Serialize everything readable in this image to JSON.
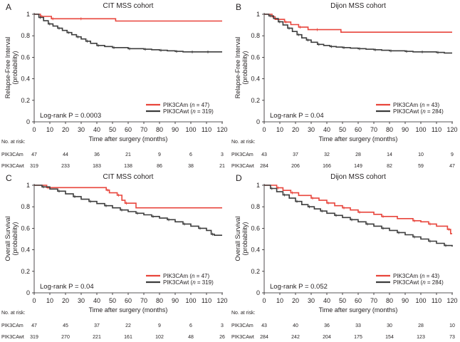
{
  "x_axis_label": "Time after surgery (months)",
  "x_ticks": [
    "0",
    "10",
    "20",
    "30",
    "40",
    "50",
    "60",
    "70",
    "80",
    "90",
    "100",
    "110",
    "120"
  ],
  "y_ticks": [
    "0",
    "0.2",
    "0.4",
    "0.6",
    "0.8",
    "1"
  ],
  "risk_header": "No. at risk:",
  "colors": {
    "mutant": "#e8453c",
    "wildtype": "#3d3d3d",
    "axis": "#231f20"
  },
  "chart_data": [
    {
      "panel": "A",
      "type": "line",
      "title": "CIT MSS cohort",
      "ylabel": [
        "Relapse-Free Interval",
        "(probability)"
      ],
      "xlim": [
        0,
        120
      ],
      "ylim": [
        0,
        1
      ],
      "logrank": "Log-rank P = 0.0003",
      "series": [
        {
          "name": "PIK3CAm",
          "n": "47",
          "color": "mutant",
          "x": [
            0,
            4,
            8,
            11,
            21,
            29,
            52,
            120
          ],
          "y": [
            1,
            0.98,
            0.98,
            0.958,
            0.958,
            0.958,
            0.937,
            0.937
          ]
        },
        {
          "name": "PIK3CAwt",
          "n": "319",
          "color": "wildtype",
          "x": [
            0,
            3,
            6,
            9,
            12,
            15,
            18,
            21,
            24,
            27,
            30,
            33,
            36,
            40,
            45,
            50,
            55,
            60,
            65,
            70,
            75,
            80,
            85,
            90,
            95,
            100,
            105,
            110,
            115,
            120
          ],
          "y": [
            1,
            0.97,
            0.94,
            0.91,
            0.89,
            0.87,
            0.85,
            0.83,
            0.81,
            0.79,
            0.77,
            0.75,
            0.73,
            0.71,
            0.7,
            0.69,
            0.69,
            0.68,
            0.68,
            0.675,
            0.67,
            0.665,
            0.66,
            0.655,
            0.65,
            0.65,
            0.65,
            0.65,
            0.65,
            0.65
          ]
        }
      ],
      "risk": [
        {
          "label": "PIK3CAm",
          "values": [
            "47",
            "44",
            "36",
            "21",
            "9",
            "6",
            "3"
          ]
        },
        {
          "label": "PIK3CAwt",
          "values": [
            "319",
            "233",
            "183",
            "138",
            "86",
            "38",
            "21"
          ]
        }
      ]
    },
    {
      "panel": "B",
      "type": "line",
      "title": "Dijon MSS cohort",
      "ylabel": [
        "Relapse-Free Interval",
        "(probability)"
      ],
      "xlim": [
        0,
        120
      ],
      "ylim": [
        0,
        1
      ],
      "logrank": "Log-rank P = 0.04",
      "series": [
        {
          "name": "PIK3CAm",
          "n": "43",
          "color": "mutant",
          "x": [
            0,
            5,
            7,
            13,
            17,
            22,
            28,
            33,
            49,
            120
          ],
          "y": [
            1,
            0.976,
            0.952,
            0.928,
            0.904,
            0.88,
            0.857,
            0.857,
            0.833,
            0.833
          ]
        },
        {
          "name": "PIK3CAwt",
          "n": "284",
          "color": "wildtype",
          "x": [
            0,
            3,
            6,
            9,
            12,
            15,
            18,
            21,
            24,
            27,
            30,
            34,
            38,
            42,
            46,
            50,
            55,
            60,
            65,
            70,
            75,
            80,
            85,
            90,
            95,
            100,
            105,
            110,
            115,
            120
          ],
          "y": [
            1,
            0.985,
            0.96,
            0.93,
            0.9,
            0.87,
            0.84,
            0.81,
            0.78,
            0.76,
            0.74,
            0.72,
            0.71,
            0.7,
            0.695,
            0.69,
            0.685,
            0.68,
            0.675,
            0.67,
            0.665,
            0.66,
            0.66,
            0.655,
            0.65,
            0.65,
            0.65,
            0.645,
            0.64,
            0.64
          ]
        }
      ],
      "risk": [
        {
          "label": "PIK3CAm",
          "values": [
            "43",
            "37",
            "32",
            "28",
            "14",
            "10",
            "9"
          ]
        },
        {
          "label": "PIK3CAwt",
          "values": [
            "284",
            "206",
            "166",
            "149",
            "82",
            "59",
            "47"
          ]
        }
      ]
    },
    {
      "panel": "C",
      "type": "line",
      "title": "CIT MSS cohort",
      "ylabel": [
        "Overall Survival",
        "(probability)"
      ],
      "xlim": [
        0,
        120
      ],
      "ylim": [
        0,
        1
      ],
      "logrank": "Log-rank P = 0.04",
      "series": [
        {
          "name": "PIK3CAm",
          "n": "47",
          "color": "mutant",
          "x": [
            0,
            8,
            11,
            46,
            48,
            53,
            56,
            58,
            65,
            120
          ],
          "y": [
            1,
            0.978,
            0.978,
            0.955,
            0.93,
            0.907,
            0.86,
            0.833,
            0.79,
            0.79
          ]
        },
        {
          "name": "PIK3CAwt",
          "n": "319",
          "color": "wildtype",
          "x": [
            0,
            5,
            10,
            15,
            20,
            25,
            30,
            35,
            40,
            45,
            50,
            55,
            60,
            65,
            70,
            75,
            80,
            85,
            90,
            95,
            100,
            105,
            110,
            113,
            115,
            120
          ],
          "y": [
            1,
            0.985,
            0.965,
            0.945,
            0.92,
            0.895,
            0.87,
            0.85,
            0.83,
            0.81,
            0.79,
            0.77,
            0.755,
            0.74,
            0.725,
            0.71,
            0.695,
            0.68,
            0.66,
            0.64,
            0.62,
            0.6,
            0.58,
            0.545,
            0.535,
            0.535
          ]
        }
      ],
      "risk": [
        {
          "label": "PIK3CAm",
          "values": [
            "47",
            "45",
            "37",
            "22",
            "9",
            "6",
            "3"
          ]
        },
        {
          "label": "PIK3CAwt",
          "values": [
            "319",
            "270",
            "221",
            "161",
            "102",
            "48",
            "26"
          ]
        }
      ]
    },
    {
      "panel": "D",
      "type": "line",
      "title": "Dijon MSS cohort",
      "ylabel": [
        "Overall Survival",
        "(probability)"
      ],
      "xlim": [
        0,
        120
      ],
      "ylim": [
        0,
        1
      ],
      "logrank": "Log-rank P = 0.052",
      "series": [
        {
          "name": "PIK3CAm",
          "n": "43",
          "color": "mutant",
          "x": [
            0,
            8,
            12,
            17,
            22,
            30,
            35,
            40,
            45,
            50,
            55,
            60,
            70,
            75,
            85,
            95,
            100,
            105,
            110,
            117,
            119,
            120
          ],
          "y": [
            1,
            0.976,
            0.952,
            0.93,
            0.905,
            0.88,
            0.86,
            0.835,
            0.81,
            0.79,
            0.77,
            0.75,
            0.73,
            0.71,
            0.69,
            0.67,
            0.66,
            0.64,
            0.62,
            0.59,
            0.55,
            0.55
          ]
        },
        {
          "name": "PIK3CAwt",
          "n": "284",
          "color": "wildtype",
          "x": [
            0,
            4,
            8,
            12,
            16,
            20,
            24,
            28,
            32,
            36,
            40,
            45,
            50,
            55,
            60,
            65,
            70,
            75,
            80,
            85,
            90,
            95,
            100,
            105,
            110,
            115,
            120
          ],
          "y": [
            1,
            0.97,
            0.94,
            0.91,
            0.88,
            0.85,
            0.82,
            0.8,
            0.78,
            0.76,
            0.74,
            0.72,
            0.7,
            0.68,
            0.66,
            0.64,
            0.62,
            0.6,
            0.58,
            0.56,
            0.54,
            0.52,
            0.5,
            0.48,
            0.46,
            0.44,
            0.43
          ]
        }
      ],
      "risk": [
        {
          "label": "PIK3CAm",
          "values": [
            "43",
            "40",
            "36",
            "33",
            "30",
            "28",
            "10"
          ]
        },
        {
          "label": "PIK3CAwt",
          "values": [
            "284",
            "242",
            "204",
            "175",
            "154",
            "123",
            "73"
          ]
        }
      ]
    }
  ]
}
